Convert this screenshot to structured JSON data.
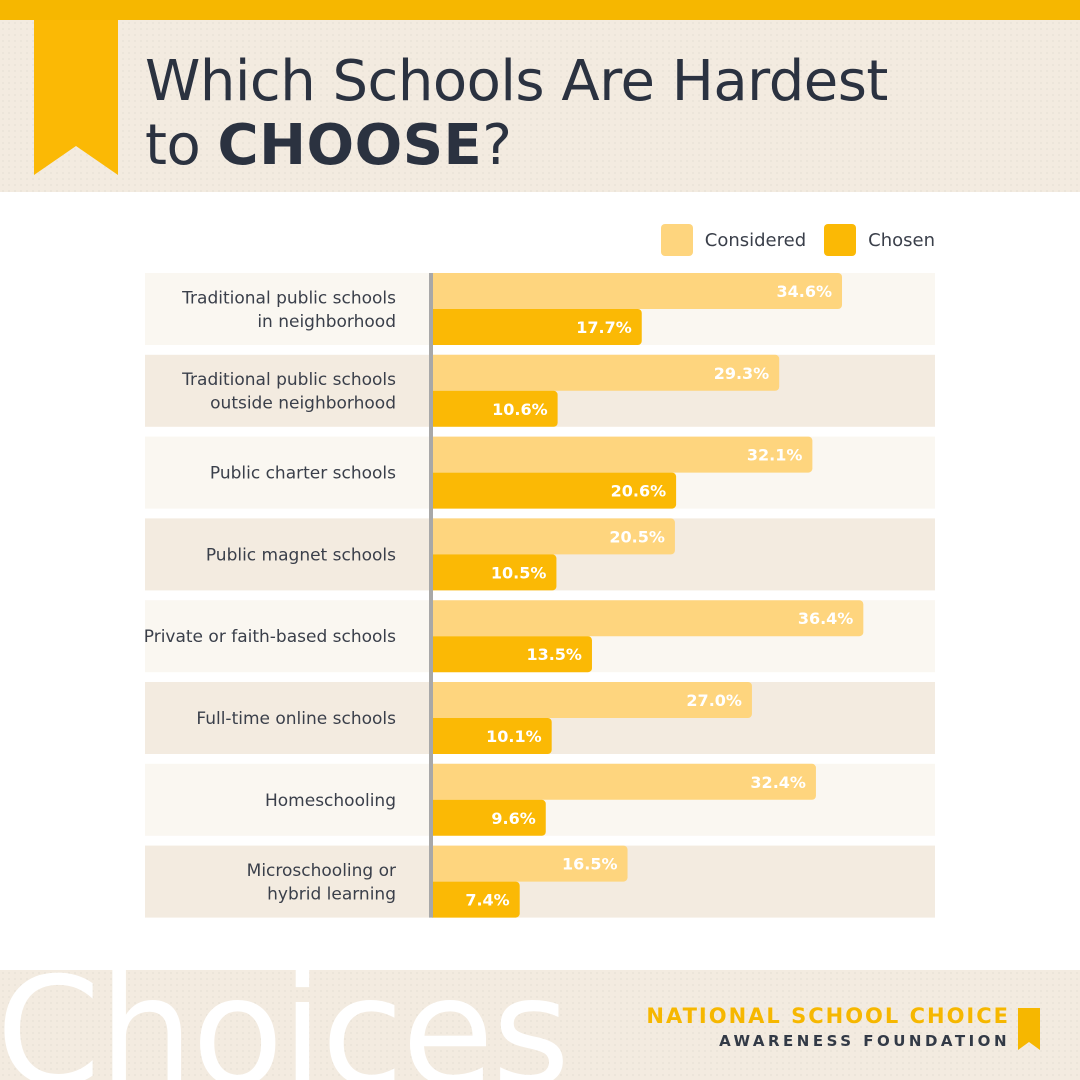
{
  "colors": {
    "considered": "#fed57e",
    "chosen": "#fbb905",
    "accent": "#f6b700",
    "row_light": "#faf7f1",
    "row_dark": "#f3ebe0",
    "axis": "#a8a8a8"
  },
  "header": {
    "title_line1": "Which Schools Are Hardest",
    "title_line2_prefix": "to ",
    "title_line2_bold": "CHOOSE",
    "title_line2_suffix": "?"
  },
  "legend": [
    {
      "label": "Considered",
      "color": "#fed57e"
    },
    {
      "label": "Chosen",
      "color": "#fbb905"
    }
  ],
  "chart_data": {
    "type": "bar",
    "orientation": "horizontal",
    "categories": [
      [
        "Traditional public schools",
        "in neighborhood"
      ],
      [
        "Traditional public schools",
        "outside neighborhood"
      ],
      [
        "Public charter schools"
      ],
      [
        "Public magnet schools"
      ],
      [
        "Private or faith-based schools"
      ],
      [
        "Full-time online schools"
      ],
      [
        "Homeschooling"
      ],
      [
        "Microschooling or",
        "hybrid learning"
      ]
    ],
    "series": [
      {
        "name": "Considered",
        "color": "#fed57e",
        "values": [
          34.6,
          29.3,
          32.1,
          20.5,
          36.4,
          27.0,
          32.4,
          16.5
        ]
      },
      {
        "name": "Chosen",
        "color": "#fbb905",
        "values": [
          17.7,
          10.6,
          20.6,
          10.5,
          13.5,
          10.1,
          9.6,
          7.4
        ]
      }
    ],
    "value_suffix": "%",
    "xlim": [
      0,
      40
    ],
    "legend_position": "top-right",
    "grid": false
  },
  "footer": {
    "watermark": "Choices",
    "org_line1": "NATIONAL SCHOOL CHOICE",
    "org_line2": "AWARENESS FOUNDATION"
  }
}
